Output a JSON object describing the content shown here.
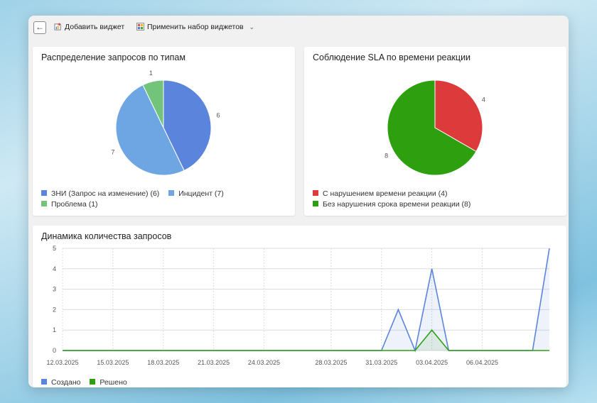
{
  "toolbar": {
    "add_widget_label": "Добавить виджет",
    "apply_set_label": "Применить набор виджетов"
  },
  "pie1": {
    "title": "Распределение запросов по типам",
    "slices": [
      {
        "name": "ЗНИ (Запрос на изменение)",
        "value": 6,
        "legend": "ЗНИ (Запрос на изменение) (6)",
        "color": "#5b84dc"
      },
      {
        "name": "Инцидент",
        "value": 7,
        "legend": "Инцидент (7)",
        "color": "#6ea6e3"
      },
      {
        "name": "Проблема",
        "value": 1,
        "legend": "Проблема (1)",
        "color": "#73c47b"
      }
    ]
  },
  "pie2": {
    "title": "Соблюдение SLA по времени реакции",
    "slices": [
      {
        "name": "С нарушением времени реакции",
        "value": 4,
        "legend": "С нарушением времени реакции (4)",
        "color": "#dd3b3b"
      },
      {
        "name": "Без нарушения срока времени реакции",
        "value": 8,
        "legend": "Без нарушения срока времени реакции (8)",
        "color": "#2ea010"
      }
    ]
  },
  "line": {
    "title": "Динамика количества запросов"
  },
  "chart_data": [
    {
      "type": "pie",
      "title": "Распределение запросов по типам",
      "labels": [
        "ЗНИ (Запрос на изменение)",
        "Инцидент",
        "Проблема"
      ],
      "values": [
        6,
        7,
        1
      ],
      "legend": "bottom"
    },
    {
      "type": "pie",
      "title": "Соблюдение SLA по времени реакции",
      "labels": [
        "С нарушением времени реакции",
        "Без нарушения срока времени реакции"
      ],
      "values": [
        4,
        8
      ],
      "legend": "bottom"
    },
    {
      "type": "area",
      "title": "Динамика количества запросов",
      "x": [
        "12.03.2025",
        "13.03.2025",
        "14.03.2025",
        "15.03.2025",
        "16.03.2025",
        "17.03.2025",
        "18.03.2025",
        "19.03.2025",
        "20.03.2025",
        "21.03.2025",
        "22.03.2025",
        "23.03.2025",
        "24.03.2025",
        "25.03.2025",
        "26.03.2025",
        "27.03.2025",
        "28.03.2025",
        "29.03.2025",
        "30.03.2025",
        "31.03.2025",
        "01.04.2025",
        "02.04.2025",
        "03.04.2025",
        "04.04.2025",
        "05.04.2025",
        "06.04.2025",
        "07.04.2025",
        "08.04.2025",
        "09.04.2025",
        "10.04.2025"
      ],
      "xticks": [
        "12.03.2025",
        "15.03.2025",
        "18.03.2025",
        "21.03.2025",
        "24.03.2025",
        "28.03.2025",
        "31.03.2025",
        "03.04.2025",
        "06.04.2025"
      ],
      "yticks": [
        0,
        1,
        2,
        3,
        4,
        5
      ],
      "ylim": [
        0,
        5
      ],
      "grid": true,
      "legend": "bottom-left",
      "series": [
        {
          "name": "Создано",
          "color": "#5b84dc",
          "values": [
            0,
            0,
            0,
            0,
            0,
            0,
            0,
            0,
            0,
            0,
            0,
            0,
            0,
            0,
            0,
            0,
            0,
            0,
            0,
            0,
            2,
            0,
            4,
            0,
            0,
            0,
            0,
            0,
            0,
            5
          ]
        },
        {
          "name": "Решено",
          "color": "#2ea010",
          "values": [
            0,
            0,
            0,
            0,
            0,
            0,
            0,
            0,
            0,
            0,
            0,
            0,
            0,
            0,
            0,
            0,
            0,
            0,
            0,
            0,
            0,
            0,
            1,
            0,
            0,
            0,
            0,
            0,
            0,
            0
          ]
        }
      ]
    }
  ]
}
